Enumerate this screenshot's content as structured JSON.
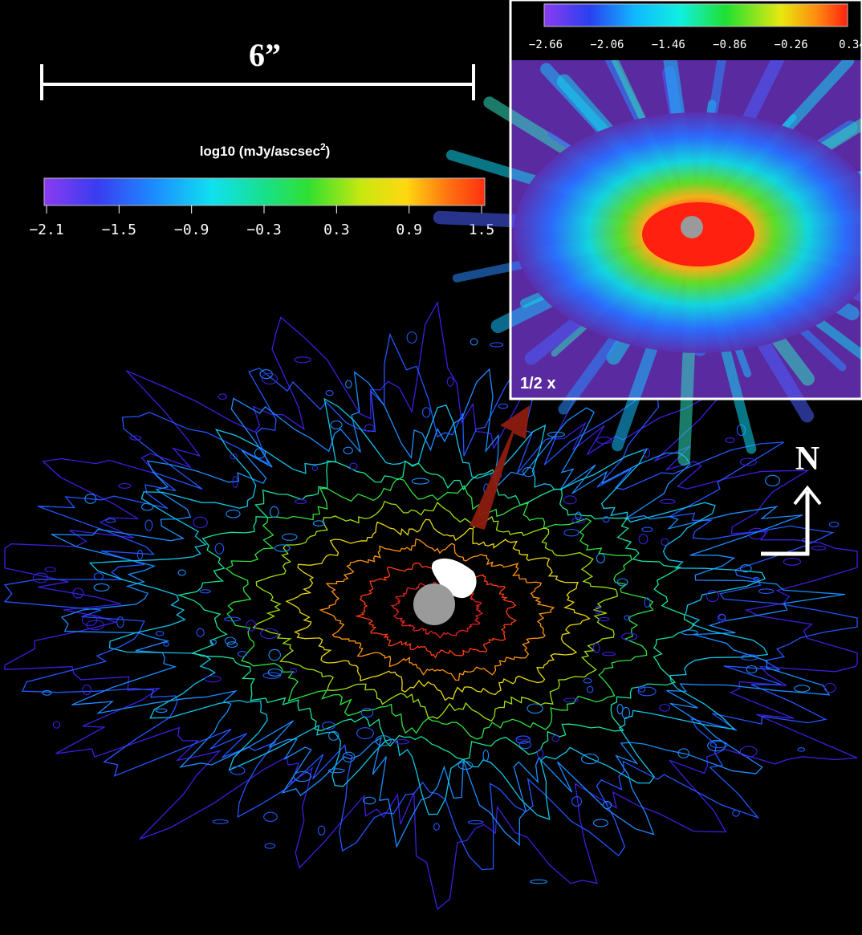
{
  "scale_bar": {
    "label": "6”"
  },
  "main_colorbar": {
    "title": "log10 (mJy/ascsec",
    "title_sup": "2",
    "title_close": ")",
    "ticks": [
      "−2.1",
      "−1.5",
      "−0.9",
      "−0.3",
      "0.3",
      "0.9",
      "1.5"
    ]
  },
  "inset": {
    "ticks": [
      "−2.66",
      "−2.06",
      "−1.46",
      "−0.86",
      "−0.26",
      "0.34"
    ],
    "zoom_label": "1/2 x"
  },
  "compass": {
    "label": "N"
  },
  "colors": {
    "contour_levels": [
      "#3a1fe0",
      "#2255ff",
      "#1a8cff",
      "#10c4e8",
      "#18e0a0",
      "#30e040",
      "#a0e010",
      "#e8d810",
      "#ff9410",
      "#ff3c10",
      "#e02020"
    ],
    "occulter": "#999999",
    "arrow": "#8c1c10"
  }
}
